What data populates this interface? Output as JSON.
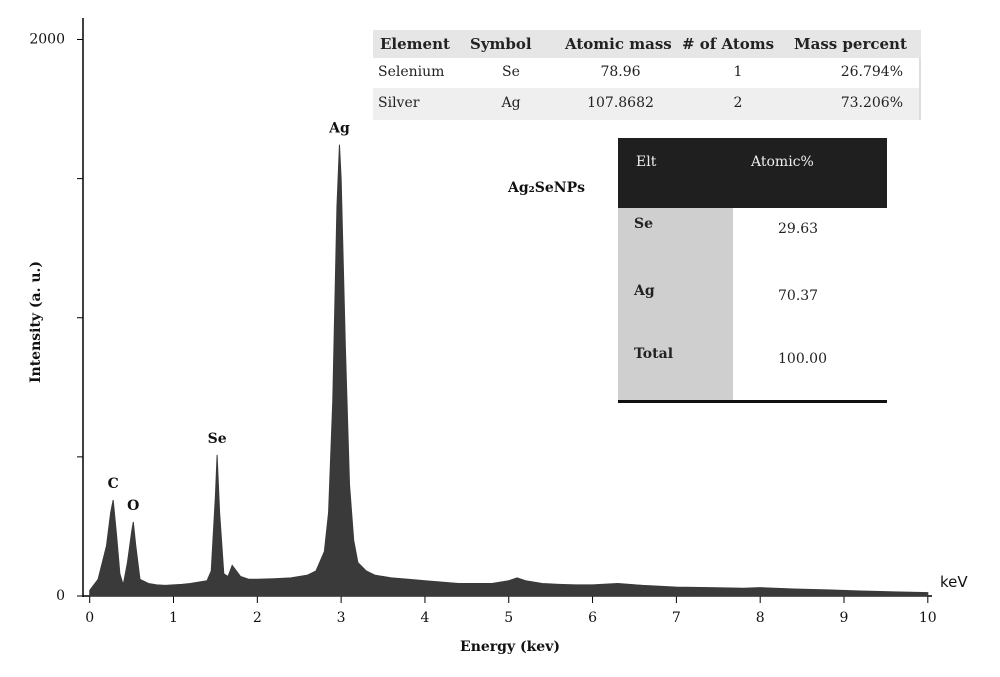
{
  "chart_data": {
    "type": "area",
    "ylabel": "Intensity (a. u.)",
    "xlabel": "Energy (kev)",
    "xunit": "keV",
    "color": "#3a3a3a",
    "xlim": [
      -0.08,
      10.05
    ],
    "ylim": [
      0,
      2070
    ],
    "xticks": [
      0,
      1,
      2,
      3,
      4,
      5,
      6,
      7,
      8,
      9,
      10
    ],
    "yticks": [
      0,
      2000
    ],
    "yminor_ticks": [
      500,
      1000,
      1500
    ],
    "x": [
      0,
      0.1,
      0.15,
      0.2,
      0.25,
      0.28,
      0.32,
      0.36,
      0.4,
      0.45,
      0.5,
      0.52,
      0.55,
      0.6,
      0.7,
      0.8,
      0.9,
      1.0,
      1.1,
      1.2,
      1.3,
      1.4,
      1.45,
      1.5,
      1.52,
      1.55,
      1.6,
      1.65,
      1.7,
      1.75,
      1.8,
      1.9,
      2.0,
      2.2,
      2.4,
      2.6,
      2.7,
      2.8,
      2.85,
      2.9,
      2.95,
      2.98,
      3.0,
      3.05,
      3.1,
      3.15,
      3.2,
      3.3,
      3.4,
      3.5,
      3.6,
      3.8,
      4.0,
      4.2,
      4.4,
      4.6,
      4.8,
      5.0,
      5.1,
      5.2,
      5.4,
      5.6,
      5.8,
      6.0,
      6.3,
      6.6,
      7.0,
      7.4,
      7.8,
      8.0,
      8.4,
      8.8,
      9.2,
      9.6,
      10.0
    ],
    "values": [
      20,
      60,
      120,
      180,
      300,
      345,
      220,
      80,
      40,
      120,
      230,
      266,
      180,
      60,
      45,
      40,
      38,
      40,
      42,
      45,
      50,
      55,
      90,
      360,
      507,
      300,
      80,
      70,
      110,
      90,
      70,
      60,
      60,
      62,
      65,
      75,
      90,
      160,
      300,
      700,
      1400,
      1622,
      1500,
      900,
      400,
      200,
      120,
      90,
      75,
      70,
      65,
      60,
      55,
      50,
      45,
      45,
      45,
      55,
      65,
      55,
      45,
      42,
      40,
      40,
      45,
      38,
      32,
      30,
      28,
      30,
      25,
      22,
      18,
      15,
      12
    ],
    "annotations": [
      {
        "text": "C",
        "x": 0.28
      },
      {
        "text": "O",
        "x": 0.52
      },
      {
        "text": "Se",
        "x": 1.52
      },
      {
        "text": "Ag",
        "x": 2.98
      }
    ]
  },
  "sample_label": "Ag₂SeNPs",
  "table1": {
    "header": [
      "Element",
      "Symbol",
      "Atomic mass",
      "# of Atoms",
      "Mass percent"
    ],
    "rows": [
      [
        "Selenium",
        "Se",
        "78.96",
        "1",
        "26.794%"
      ],
      [
        "Silver",
        "Ag",
        "107.8682",
        "2",
        "73.206%"
      ]
    ]
  },
  "table2": {
    "header": [
      "Elt",
      "Atomic%"
    ],
    "rows": [
      [
        "Se",
        "29.63"
      ],
      [
        "Ag",
        "70.37"
      ],
      [
        "Total",
        "100.00"
      ]
    ]
  }
}
